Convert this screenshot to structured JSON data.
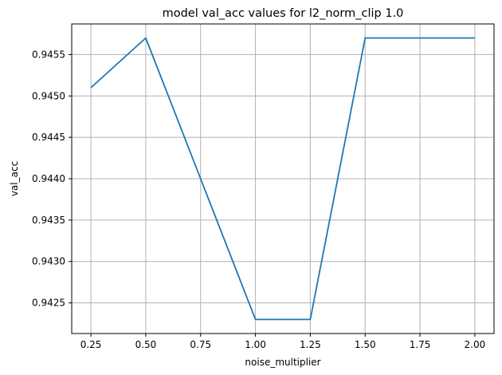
{
  "chart_data": {
    "type": "line",
    "title": "model val_acc values for l2_norm_clip 1.0",
    "xlabel": "noise_multiplier",
    "ylabel": "val_acc",
    "xlim": [
      0.1625,
      2.0875
    ],
    "ylim": [
      0.94213,
      0.94587
    ],
    "x_ticks": [
      0.25,
      0.5,
      0.75,
      1.0,
      1.25,
      1.5,
      1.75,
      2.0
    ],
    "x_tick_labels": [
      "0.25",
      "0.50",
      "0.75",
      "1.00",
      "1.25",
      "1.50",
      "1.75",
      "2.00"
    ],
    "y_ticks": [
      0.9425,
      0.943,
      0.9435,
      0.944,
      0.9445,
      0.945,
      0.9455
    ],
    "y_tick_labels": [
      "0.9425",
      "0.9430",
      "0.9435",
      "0.9440",
      "0.9445",
      "0.9450",
      "0.9455"
    ],
    "grid": true,
    "series": [
      {
        "x": [
          0.25,
          0.5,
          1.0,
          1.25,
          1.5,
          2.0
        ],
        "values": [
          0.9451,
          0.9457,
          0.9423,
          0.9423,
          0.9457,
          0.9457
        ],
        "color": "#1f77b4"
      }
    ]
  }
}
